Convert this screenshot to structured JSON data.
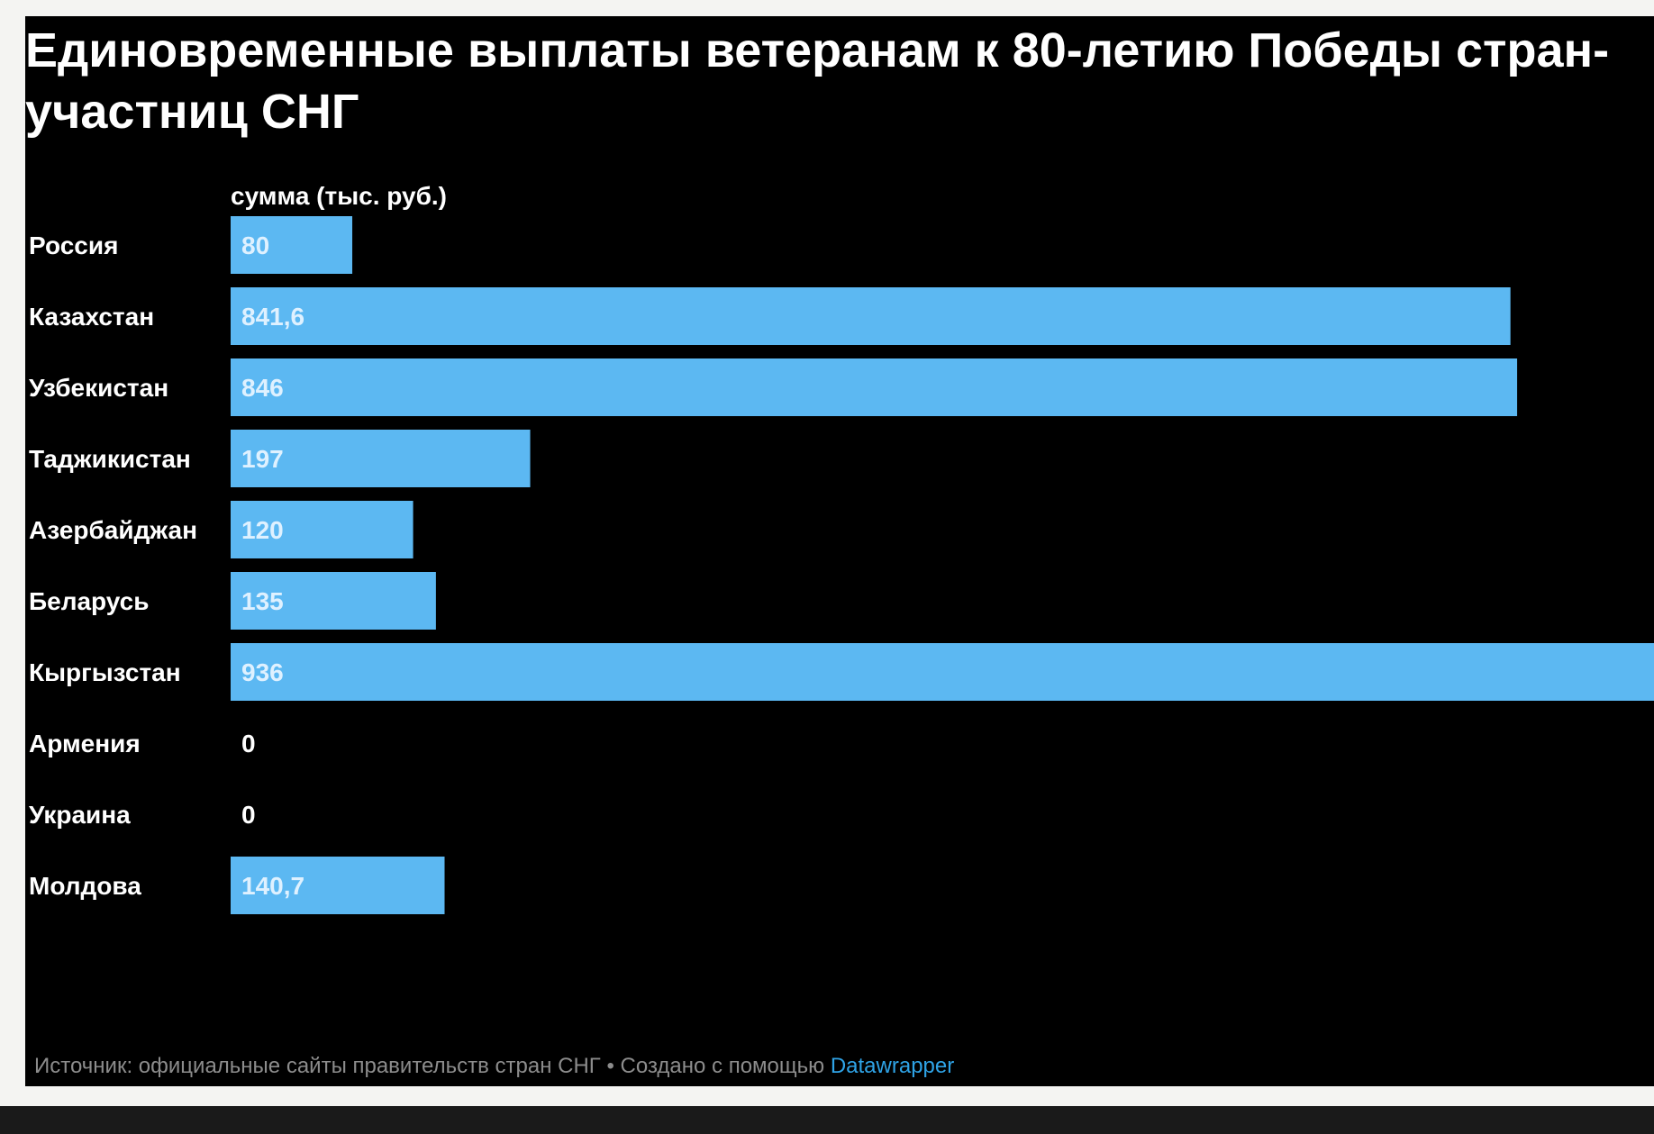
{
  "chart_data": {
    "type": "bar",
    "orientation": "horizontal",
    "title": "Единовременные выплаты ветеранам к 80-летию Победы стран-участниц СНГ",
    "column_header": "сумма (тыс. руб.)",
    "categories": [
      "Россия",
      "Казахстан",
      "Узбекистан",
      "Таджикистан",
      "Азербайджан",
      "Беларусь",
      "Кыргызстан",
      "Армения",
      "Украина",
      "Молдова"
    ],
    "values": [
      80,
      841.6,
      846,
      197,
      120,
      135,
      936,
      0,
      0,
      140.7
    ],
    "value_labels": [
      "80",
      "841,6",
      "846",
      "197",
      "120",
      "135",
      "936",
      "0",
      "0",
      "140,7"
    ],
    "xlim": [
      0,
      936
    ],
    "grid": false,
    "legend": "none",
    "bar_color": "#5cb8f2",
    "background_color": "#000000"
  },
  "footer": {
    "source_text": "Источник: официальные сайты правительств стран СНГ • Создано с помощью ",
    "link_text": "Datawrapper"
  },
  "colors": {
    "bar": "#5cb8f2",
    "label_inside": "#dff1ff",
    "text": "#ffffff",
    "footer": "#8c8c8c",
    "link": "#2fa3e6"
  }
}
